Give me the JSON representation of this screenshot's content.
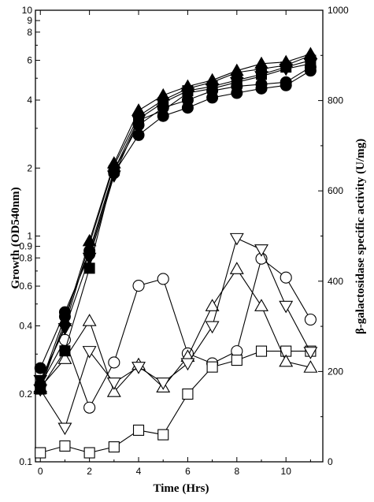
{
  "chart_data": {
    "type": "line",
    "xlabel": "Time (Hrs)",
    "ylabel_left": "Growth (OD540nm)",
    "ylabel_right": "β-galactosidase specific activity (U/mg)",
    "x_ticks": [
      0,
      2,
      4,
      6,
      8,
      10
    ],
    "xlim": [
      -0.2,
      11.5
    ],
    "y_left": {
      "scale": "log",
      "lim": [
        0.1,
        10
      ],
      "ticks": [
        0.1,
        0.2,
        0.4,
        0.6,
        0.8,
        0.9,
        1,
        2,
        4,
        6,
        8,
        9,
        10
      ],
      "tick_labels": [
        "0.1",
        "0.2",
        "0.4",
        "0.6",
        "0.8",
        "0.9",
        "1",
        "2",
        "4",
        "6",
        "8",
        "9",
        "10"
      ]
    },
    "y_right": {
      "scale": "linear",
      "lim": [
        0,
        1000
      ],
      "ticks": [
        0,
        200,
        400,
        600,
        800,
        1000
      ],
      "tick_labels": [
        "0",
        "200",
        "400",
        "600",
        "800",
        "1000"
      ]
    },
    "growth_series": [
      {
        "marker": "filled-circle",
        "x": [
          0,
          1,
          2,
          3,
          4,
          5,
          6,
          7,
          8,
          9,
          10,
          11
        ],
        "y": [
          0.26,
          0.46,
          0.83,
          1.9,
          2.8,
          3.4,
          3.7,
          4.1,
          4.3,
          4.5,
          4.65,
          5.4
        ]
      },
      {
        "marker": "filled-circle",
        "x": [
          0,
          1,
          2,
          3,
          4,
          5,
          6,
          7,
          8,
          9,
          10,
          11
        ],
        "y": [
          0.22,
          0.44,
          0.86,
          1.95,
          3.1,
          3.7,
          4.0,
          4.4,
          4.6,
          4.7,
          4.8,
          5.6
        ]
      },
      {
        "marker": "filled-square",
        "x": [
          0,
          1,
          2,
          3,
          4,
          5,
          6,
          7,
          8,
          9,
          10,
          11
        ],
        "y": [
          0.21,
          0.31,
          0.72,
          1.95,
          3.3,
          3.9,
          4.4,
          4.6,
          4.9,
          5.2,
          5.6,
          6.0
        ]
      },
      {
        "marker": "filled-triangle-down",
        "x": [
          0,
          1,
          2,
          3,
          4,
          5,
          6,
          7,
          8,
          9,
          10,
          11
        ],
        "y": [
          0.23,
          0.39,
          0.8,
          1.85,
          3.25,
          3.6,
          4.3,
          4.5,
          4.8,
          5.1,
          5.5,
          5.8
        ]
      },
      {
        "marker": "filled-diamond",
        "x": [
          0,
          1,
          2,
          3,
          4,
          5,
          6,
          7,
          8,
          9,
          10,
          11
        ],
        "y": [
          0.22,
          0.4,
          0.92,
          2.05,
          3.4,
          4.0,
          4.5,
          4.8,
          5.3,
          5.5,
          5.7,
          6.3
        ]
      },
      {
        "marker": "filled-triangle-up",
        "x": [
          0,
          1,
          2,
          3,
          4,
          5,
          6,
          7,
          8,
          9,
          10,
          11
        ],
        "y": [
          0.21,
          0.42,
          0.95,
          2.1,
          3.6,
          4.2,
          4.6,
          4.9,
          5.4,
          5.8,
          5.9,
          6.4
        ]
      }
    ],
    "activity_series": [
      {
        "marker": "open-circle",
        "x": [
          0,
          1,
          2,
          3,
          4,
          5,
          6,
          7,
          8,
          9,
          10,
          11
        ],
        "y": [
          170,
          270,
          120,
          220,
          390,
          405,
          240,
          218,
          245,
          450,
          408,
          315
        ]
      },
      {
        "marker": "open-square",
        "x": [
          0,
          1,
          2,
          3,
          4,
          5,
          6,
          7,
          8,
          9,
          10,
          11
        ],
        "y": [
          20,
          35,
          20,
          33,
          70,
          60,
          150,
          210,
          225,
          245,
          245,
          245
        ]
      },
      {
        "marker": "open-triangle-up",
        "x": [
          0,
          1,
          2,
          3,
          4,
          5,
          6,
          7,
          8,
          9,
          10,
          11
        ],
        "y": [
          165,
          228,
          312,
          155,
          215,
          165,
          233,
          345,
          427,
          345,
          222,
          209
        ]
      },
      {
        "marker": "open-triangle-down",
        "x": [
          0,
          1,
          2,
          3,
          4,
          5,
          6,
          7,
          8,
          9,
          10,
          11
        ],
        "y": [
          160,
          75,
          245,
          175,
          210,
          175,
          218,
          300,
          495,
          470,
          345,
          243
        ]
      }
    ]
  }
}
